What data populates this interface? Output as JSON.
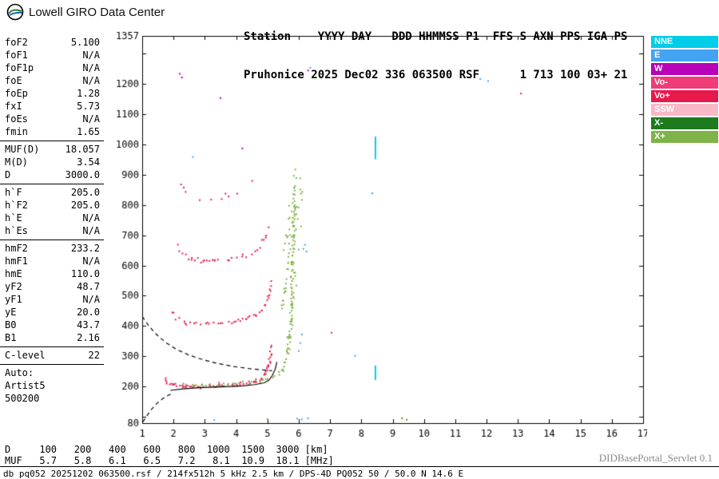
{
  "header": {
    "logo_text": "Lowell GIRO Data Center",
    "station_line1": "Station    YYYY DAY   DDD HHMMSS P1  FFS S AXN PPS IGA PS",
    "station_line2": "Pruhonice 2025 Dec02 336 063500 RSF      1 713 100 03+ 21"
  },
  "params": {
    "groups": [
      [
        {
          "label": "foF2",
          "value": "5.100"
        },
        {
          "label": "foF1",
          "value": "N/A"
        },
        {
          "label": "foF1p",
          "value": "N/A"
        },
        {
          "label": "foE",
          "value": "N/A"
        },
        {
          "label": "foEp",
          "value": "1.28"
        },
        {
          "label": "fxI",
          "value": "5.73"
        },
        {
          "label": "foEs",
          "value": "N/A"
        },
        {
          "label": "fmin",
          "value": "1.65"
        }
      ],
      [
        {
          "label": "MUF(D)",
          "value": "18.057"
        },
        {
          "label": "M(D)",
          "value": "3.54"
        },
        {
          "label": "D",
          "value": "3000.0"
        }
      ],
      [
        {
          "label": "h`F",
          "value": "205.0"
        },
        {
          "label": "h`F2",
          "value": "205.0"
        },
        {
          "label": "h`E",
          "value": "N/A"
        },
        {
          "label": "h`Es",
          "value": "N/A"
        }
      ],
      [
        {
          "label": "hmF2",
          "value": "233.2"
        },
        {
          "label": "hmF1",
          "value": "N/A"
        },
        {
          "label": "hmE",
          "value": "110.0"
        },
        {
          "label": "yF2",
          "value": "48.7"
        },
        {
          "label": "yF1",
          "value": "N/A"
        },
        {
          "label": "yE",
          "value": "20.0"
        },
        {
          "label": "B0",
          "value": "43.7"
        },
        {
          "label": "B1",
          "value": "2.16"
        }
      ],
      [
        {
          "label": "C-level",
          "value": "22"
        }
      ]
    ],
    "auto_lines": [
      "Auto:",
      "Artist5",
      "500200"
    ]
  },
  "legend": [
    {
      "label": "NNE",
      "color": "#00CDE8"
    },
    {
      "label": "E",
      "color": "#44A3F2"
    },
    {
      "label": "W",
      "color": "#B800B8"
    },
    {
      "label": "Vo-",
      "color": "#F03C78"
    },
    {
      "label": "Vo+",
      "color": "#E8194B"
    },
    {
      "label": "SSW",
      "color": "#F8B8C8"
    },
    {
      "label": "X-",
      "color": "#1E7A1E"
    },
    {
      "label": "X+",
      "color": "#7FB347"
    }
  ],
  "footer": {
    "d_row": "D     100   200   400   600   800  1000  1500  3000 [km]",
    "muf_row": "MUF   5.7   5.8   6.1   6.5   7.2   8.1  10.9  18.1 [MHz]",
    "status": "db pq052 20251202 063500.rsf / 214fx512h 5 kHz 2.5 km / DPS-4D PQ052 50 / 50.0 N 14.6 E",
    "servlet": "DIDBasePortal_Servlet 0.1"
  },
  "chart_data": {
    "type": "scatter",
    "title": "Pruhonice ionogram 2025 Dec02 336 063500",
    "x_axis": {
      "unit": "MHz",
      "min": 1,
      "max": 17,
      "ticks": [
        1,
        2,
        3,
        4,
        5,
        6,
        7,
        8,
        9,
        10,
        11,
        12,
        13,
        14,
        15,
        16,
        17
      ]
    },
    "y_axis": {
      "unit": "km",
      "min": 80,
      "max": 1357,
      "tick_step": 100,
      "labels": [
        1357,
        1200,
        1100,
        1000,
        900,
        800,
        700,
        600,
        500,
        400,
        300,
        200,
        80
      ]
    },
    "colors": {
      "o_mode": "#E8194B",
      "o_minus": "#F03C78",
      "x_mode": "#7FB347",
      "x_minus": "#1E7A1E",
      "east": "#44A3F2",
      "west": "#B800B8",
      "nne": "#00CDE8",
      "ssw": "#F8B8C8",
      "olive": "#8B8000",
      "trace": "#000000"
    },
    "muf_table": {
      "distances_km": [
        100,
        200,
        400,
        600,
        800,
        1000,
        1500,
        3000
      ],
      "muf_mhz": [
        5.7,
        5.8,
        6.1,
        6.5,
        7.2,
        8.1,
        10.9,
        18.1
      ]
    },
    "key_values": {
      "foF2": 5.1,
      "fxI": 5.73,
      "fmin": 1.65,
      "hmF2": 233.2,
      "hprime_F": 205.0,
      "MUF_3000": 18.057
    },
    "series": [
      {
        "name": "F-1hop-O",
        "color": "o_mode",
        "spacing": 2.5,
        "jitter_f": 0.04,
        "jitter_h": 5,
        "skip": 0.15,
        "dot": 2,
        "points": [
          [
            1.72,
            228
          ],
          [
            1.8,
            212
          ],
          [
            2.0,
            206
          ],
          [
            2.4,
            202
          ],
          [
            2.8,
            201
          ],
          [
            3.2,
            202
          ],
          [
            3.6,
            204
          ],
          [
            4.0,
            207
          ],
          [
            4.3,
            211
          ],
          [
            4.6,
            217
          ],
          [
            4.8,
            226
          ],
          [
            4.92,
            240
          ],
          [
            5.0,
            258
          ],
          [
            5.06,
            282
          ],
          [
            5.1,
            308
          ],
          [
            5.13,
            338
          ]
        ]
      },
      {
        "name": "F-1hop-O-spread",
        "color": "o_minus",
        "spacing": 6,
        "jitter_f": 0.05,
        "jitter_h": 9,
        "skip": 0.45,
        "dot": 2,
        "points": [
          [
            1.78,
            214
          ],
          [
            2.3,
            206
          ],
          [
            2.9,
            203
          ],
          [
            3.5,
            206
          ],
          [
            4.1,
            210
          ],
          [
            4.6,
            218
          ]
        ]
      },
      {
        "name": "F-1hop-X",
        "color": "x_mode",
        "spacing": 3,
        "jitter_f": 0.05,
        "jitter_h": 6,
        "skip": 0.2,
        "dot": 2,
        "points": [
          [
            2.35,
            209
          ],
          [
            2.9,
            205
          ],
          [
            3.5,
            206
          ],
          [
            4.0,
            209
          ],
          [
            4.5,
            214
          ],
          [
            4.9,
            221
          ],
          [
            5.2,
            231
          ],
          [
            5.4,
            244
          ],
          [
            5.52,
            262
          ],
          [
            5.6,
            285
          ],
          [
            5.66,
            318
          ],
          [
            5.71,
            365
          ],
          [
            5.75,
            425
          ],
          [
            5.78,
            505
          ],
          [
            5.81,
            605
          ],
          [
            5.84,
            725
          ],
          [
            5.87,
            855
          ],
          [
            5.89,
            915
          ]
        ]
      },
      {
        "name": "X-asymptote-spread",
        "color": "x_mode",
        "spacing": 4,
        "jitter_f": 0.12,
        "jitter_h": 15,
        "skip": 0.35,
        "dot": 2,
        "points": [
          [
            5.55,
            280
          ],
          [
            5.7,
            380
          ],
          [
            5.8,
            500
          ],
          [
            5.9,
            640
          ],
          [
            6.0,
            780
          ],
          [
            6.05,
            880
          ]
        ]
      },
      {
        "name": "F-2hop-O",
        "color": "o_mode",
        "spacing": 3.5,
        "jitter_f": 0.04,
        "jitter_h": 7,
        "skip": 0.25,
        "dot": 2,
        "points": [
          [
            2.0,
            448
          ],
          [
            2.1,
            426
          ],
          [
            2.35,
            413
          ],
          [
            2.7,
            407
          ],
          [
            3.1,
            406
          ],
          [
            3.5,
            409
          ],
          [
            3.9,
            414
          ],
          [
            4.3,
            422
          ],
          [
            4.6,
            433
          ],
          [
            4.8,
            448
          ],
          [
            4.95,
            472
          ],
          [
            5.05,
            502
          ],
          [
            5.12,
            545
          ]
        ]
      },
      {
        "name": "F-2hop-X",
        "color": "x_mode",
        "spacing": 4,
        "jitter_f": 0.06,
        "jitter_h": 10,
        "skip": 0.3,
        "dot": 2,
        "points": [
          [
            5.3,
            432
          ],
          [
            5.45,
            465
          ],
          [
            5.55,
            512
          ],
          [
            5.65,
            582
          ],
          [
            5.75,
            682
          ],
          [
            5.85,
            805
          ]
        ]
      },
      {
        "name": "F-3hop-O",
        "color": "o_mode",
        "spacing": 4,
        "jitter_f": 0.05,
        "jitter_h": 8,
        "skip": 0.3,
        "dot": 2,
        "points": [
          [
            2.1,
            662
          ],
          [
            2.25,
            638
          ],
          [
            2.55,
            622
          ],
          [
            2.95,
            615
          ],
          [
            3.35,
            614
          ],
          [
            3.75,
            618
          ],
          [
            4.15,
            627
          ],
          [
            4.5,
            641
          ],
          [
            4.75,
            662
          ],
          [
            4.9,
            690
          ],
          [
            5.0,
            728
          ]
        ]
      },
      {
        "name": "F-3hop-X",
        "color": "x_mode",
        "spacing": 5,
        "jitter_f": 0.06,
        "jitter_h": 10,
        "skip": 0.4,
        "dot": 2,
        "points": [
          [
            5.5,
            648
          ],
          [
            5.62,
            695
          ],
          [
            5.72,
            762
          ],
          [
            5.82,
            852
          ]
        ]
      },
      {
        "name": "F-4hop-O",
        "color": "o_mode",
        "spacing": 5,
        "jitter_f": 0.05,
        "jitter_h": 9,
        "skip": 0.45,
        "dot": 2,
        "points": [
          [
            2.2,
            862
          ],
          [
            2.45,
            838
          ],
          [
            2.85,
            824
          ],
          [
            3.25,
            822
          ],
          [
            3.65,
            828
          ],
          [
            4.05,
            841
          ],
          [
            4.35,
            858
          ],
          [
            4.55,
            880
          ]
        ]
      }
    ],
    "lines": [
      {
        "name": "artist-hprime-trace",
        "style": "solid",
        "color": "trace",
        "width": 1.2,
        "points": [
          [
            1.9,
            188
          ],
          [
            2.3,
            193
          ],
          [
            2.8,
            197
          ],
          [
            3.3,
            199
          ],
          [
            3.8,
            201
          ],
          [
            4.2,
            203
          ],
          [
            4.6,
            207
          ],
          [
            4.9,
            213
          ],
          [
            5.05,
            222
          ],
          [
            5.15,
            236
          ],
          [
            5.25,
            258
          ],
          [
            5.3,
            282
          ]
        ]
      },
      {
        "name": "profile-dashed",
        "style": "dashed",
        "color": "trace",
        "width": 1.2,
        "points": [
          [
            1.02,
            84
          ],
          [
            1.15,
            104
          ],
          [
            1.3,
            126
          ],
          [
            1.5,
            148
          ],
          [
            1.7,
            164
          ],
          [
            1.95,
            178
          ]
        ]
      },
      {
        "name": "transmission-curve-dashed",
        "style": "dashed",
        "color": "trace",
        "width": 1.2,
        "points": [
          [
            1.0,
            432
          ],
          [
            1.2,
            402
          ],
          [
            1.45,
            373
          ],
          [
            1.75,
            346
          ],
          [
            2.1,
            323
          ],
          [
            2.5,
            304
          ],
          [
            2.95,
            289
          ],
          [
            3.4,
            277
          ],
          [
            3.9,
            267
          ],
          [
            4.4,
            260
          ],
          [
            4.9,
            255
          ],
          [
            5.15,
            253
          ]
        ]
      }
    ],
    "vertical_marks": [
      {
        "f": 8.45,
        "h_from": 950,
        "h_to": 1025,
        "color": "nne",
        "width": 2
      },
      {
        "f": 8.45,
        "h_from": 222,
        "h_to": 270,
        "color": "nne",
        "width": 2
      }
    ],
    "noise_points": [
      [
        2.2,
        1232,
        "west"
      ],
      [
        2.27,
        1220,
        "west"
      ],
      [
        3.5,
        1152,
        "west"
      ],
      [
        6.3,
        1243,
        "west"
      ],
      [
        6.37,
        1252,
        "east"
      ],
      [
        13.1,
        1167,
        "o_mode"
      ],
      [
        11.8,
        1215,
        "east"
      ],
      [
        12.05,
        1208,
        "east"
      ],
      [
        4.2,
        986,
        "west"
      ],
      [
        8.35,
        838,
        "east"
      ],
      [
        2.62,
        958,
        "east"
      ],
      [
        6.15,
        655,
        "east"
      ],
      [
        6.25,
        646,
        "east"
      ],
      [
        6.2,
        668,
        "east"
      ],
      [
        6.1,
        372,
        "east"
      ],
      [
        6.05,
        344,
        "east"
      ],
      [
        6.0,
        318,
        "east"
      ],
      [
        7.8,
        302,
        "east"
      ],
      [
        7.05,
        378,
        "o_mode"
      ],
      [
        5.95,
        95,
        "east"
      ],
      [
        6.1,
        92,
        "east"
      ],
      [
        6.3,
        96,
        "east"
      ],
      [
        9.3,
        96,
        "olive"
      ],
      [
        9.45,
        91,
        "olive"
      ],
      [
        5.0,
        93,
        "x_mode"
      ],
      [
        3.3,
        90,
        "east"
      ]
    ]
  }
}
